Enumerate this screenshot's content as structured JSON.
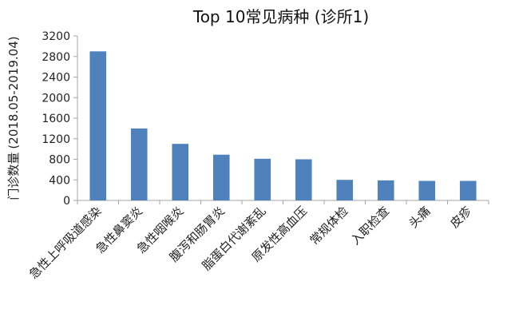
{
  "chart_data": {
    "type": "bar",
    "title": "Top 10常见病种 (诊所1)",
    "ylabel_main": "门诊数量",
    "ylabel_sub": "(2018.05-2019.04)",
    "xlabel": "",
    "ylim": [
      0,
      3200
    ],
    "yticks": [
      0,
      400,
      800,
      1200,
      1600,
      2000,
      2400,
      2800,
      3200
    ],
    "grid": false,
    "legend": "none",
    "bar_color": "#4f81bd",
    "axis_color": "#a6a6a6",
    "categories": [
      "急性上呼吸道感染",
      "急性鼻窦炎",
      "急性咽喉炎",
      "腹泻和肠胃炎",
      "脂蛋白代谢紊乱",
      "原发性高血压",
      "常规体检",
      "入职检查",
      "头痛",
      "皮疹"
    ],
    "values": [
      2900,
      1400,
      1100,
      890,
      810,
      800,
      400,
      390,
      380,
      380
    ]
  }
}
